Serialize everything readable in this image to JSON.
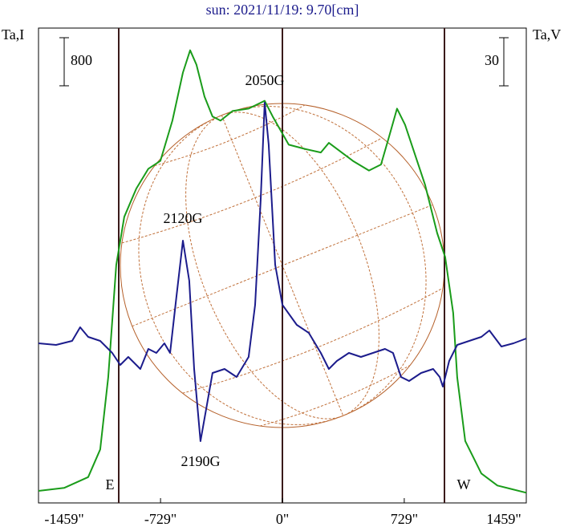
{
  "chart_data": {
    "type": "line",
    "title": "sun: 2021/11/19: 9.70[cm]",
    "ylabel": "Ta,I",
    "y2label": "Ta,V",
    "xlim": [
      -1459,
      1459
    ],
    "xticks": [
      {
        "value": -1459,
        "label": "-1459\""
      },
      {
        "value": -729,
        "label": "-729\""
      },
      {
        "value": 0,
        "label": "0\""
      },
      {
        "value": 729,
        "label": "729\""
      },
      {
        "value": 1459,
        "label": "1459\""
      }
    ],
    "ylim": [
      0,
      7900
    ],
    "y2lim": [
      0,
      296
    ],
    "scale_bars": [
      {
        "value": 800,
        "axis": "y"
      },
      {
        "value": 30,
        "axis": "y2"
      }
    ],
    "series": [
      {
        "name": "Ta,I",
        "color": "#1a9c1a",
        "x": [
          -1459,
          -1306,
          -1162,
          -1090,
          -1042,
          -994,
          -946,
          -874,
          -802,
          -730,
          -658,
          -595,
          -552,
          -514,
          -466,
          -418,
          -370,
          -298,
          -202,
          -106,
          -58,
          38,
          134,
          230,
          278,
          326,
          422,
          518,
          590,
          638,
          686,
          734,
          782,
          854,
          926,
          974,
          1022,
          1046,
          1094,
          1190,
          1286,
          1459
        ],
        "values": [
          200,
          250,
          430,
          890,
          2090,
          3960,
          4760,
          5230,
          5560,
          5690,
          6360,
          7160,
          7530,
          7290,
          6760,
          6430,
          6360,
          6520,
          6560,
          6690,
          6430,
          5960,
          5890,
          5830,
          5990,
          5890,
          5690,
          5530,
          5630,
          6090,
          6560,
          6290,
          5890,
          5290,
          4490,
          4090,
          3160,
          2090,
          1030,
          490,
          290,
          170
        ]
      },
      {
        "name": "Ta,V",
        "color": "#1c1c8c",
        "axis": "y2",
        "x": [
          -1459,
          -1354,
          -1258,
          -1210,
          -1162,
          -1090,
          -1018,
          -970,
          -922,
          -850,
          -802,
          -754,
          -706,
          -672,
          -634,
          -595,
          -557,
          -528,
          -490,
          -456,
          -418,
          -346,
          -274,
          -202,
          -163,
          -130,
          -106,
          -82,
          -43,
          0,
          86,
          158,
          230,
          278,
          326,
          398,
          470,
          542,
          614,
          662,
          710,
          758,
          830,
          902,
          941,
          960,
          998,
          1046,
          1118,
          1190,
          1238,
          1310,
          1382,
          1459
        ],
        "values": [
          99.5,
          98.5,
          101,
          109.5,
          103.5,
          101,
          93.5,
          86,
          91,
          83.5,
          96,
          93.5,
          99.5,
          93.5,
          128.5,
          163.5,
          138.5,
          83.5,
          38.5,
          58.5,
          81,
          83.5,
          78.5,
          91,
          123.5,
          188.5,
          249.5,
          223.5,
          148.5,
          123.5,
          111,
          106,
          93.5,
          83.5,
          88.5,
          93.5,
          91,
          93.5,
          96,
          93.5,
          78.5,
          76,
          81,
          83.5,
          78.5,
          72.5,
          88.5,
          98.5,
          101,
          103.5,
          107.5,
          97.5,
          99.5,
          102.5
        ]
      }
    ],
    "annotations": [
      "2050G",
      "2120G",
      "2190G",
      "E",
      "W"
    ]
  }
}
